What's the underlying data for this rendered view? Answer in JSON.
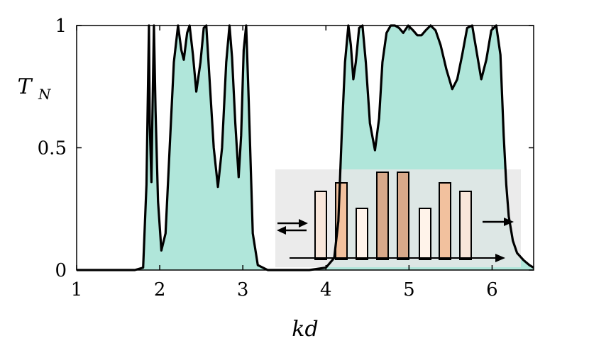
{
  "chart_data": {
    "type": "line",
    "title": "",
    "xlabel": "kd",
    "ylabel_main": "T",
    "ylabel_sub": "N",
    "xlim": [
      1,
      6.5
    ],
    "ylim": [
      0,
      1
    ],
    "x_ticks": [
      1,
      2,
      3,
      4,
      5,
      6
    ],
    "x_tick_labels": [
      "1",
      "2",
      "3",
      "4",
      "5",
      "6"
    ],
    "y_ticks": [
      0,
      0.5,
      1
    ],
    "y_tick_labels": [
      "0",
      "0.5",
      "1"
    ],
    "grid": false,
    "series": [
      {
        "color": "#000000",
        "x": [
          1.0,
          1.7,
          1.8,
          1.84,
          1.87,
          1.88,
          1.9,
          1.91,
          1.93,
          1.95,
          1.98,
          2.02,
          2.07,
          2.12,
          2.17,
          2.22,
          2.26,
          2.29,
          2.33,
          2.36,
          2.4,
          2.44,
          2.49,
          2.53,
          2.56,
          2.6,
          2.65,
          2.7,
          2.75,
          2.8,
          2.84,
          2.87,
          2.91,
          2.95,
          2.98,
          3.01,
          3.04,
          3.07,
          3.12,
          3.18,
          3.3,
          3.5,
          3.8,
          4.0,
          4.1,
          4.15,
          4.19,
          4.23,
          4.27,
          4.3,
          4.33,
          4.36,
          4.4,
          4.44,
          4.48,
          4.53,
          4.59,
          4.64,
          4.68,
          4.73,
          4.78,
          4.83,
          4.88,
          4.93,
          4.99,
          5.05,
          5.1,
          5.15,
          5.2,
          5.26,
          5.32,
          5.38,
          5.45,
          5.52,
          5.58,
          5.64,
          5.7,
          5.76,
          5.82,
          5.87,
          5.93,
          5.99,
          6.05,
          6.1,
          6.14,
          6.17,
          6.2,
          6.25,
          6.3,
          6.38,
          6.45,
          6.5
        ],
        "y": [
          0.0,
          0.0,
          0.01,
          0.35,
          1.0,
          0.6,
          0.36,
          0.6,
          1.0,
          0.65,
          0.28,
          0.08,
          0.15,
          0.5,
          0.85,
          1.0,
          0.9,
          0.86,
          0.97,
          1.0,
          0.88,
          0.73,
          0.85,
          0.99,
          1.0,
          0.78,
          0.5,
          0.34,
          0.5,
          0.85,
          1.0,
          0.87,
          0.6,
          0.38,
          0.55,
          0.9,
          1.0,
          0.7,
          0.15,
          0.02,
          0.0,
          0.0,
          0.0,
          0.01,
          0.05,
          0.2,
          0.55,
          0.85,
          1.0,
          0.92,
          0.78,
          0.85,
          0.99,
          1.0,
          0.85,
          0.6,
          0.49,
          0.62,
          0.85,
          0.97,
          1.0,
          1.0,
          0.99,
          0.97,
          1.0,
          0.98,
          0.96,
          0.96,
          0.98,
          1.0,
          0.98,
          0.92,
          0.82,
          0.74,
          0.78,
          0.88,
          0.99,
          1.0,
          0.88,
          0.78,
          0.86,
          0.98,
          1.0,
          0.88,
          0.55,
          0.35,
          0.22,
          0.12,
          0.07,
          0.04,
          0.02,
          0.01
        ]
      }
    ],
    "inset": {
      "background": "#e6e6e6",
      "bars": [
        {
          "height": 0.32,
          "color": "#f8e6da"
        },
        {
          "height": 0.36,
          "color": "#f2c19e"
        },
        {
          "height": 0.24,
          "color": "#fff3ea"
        },
        {
          "height": 0.41,
          "color": "#d8a98a"
        },
        {
          "height": 0.41,
          "color": "#d8a98a"
        },
        {
          "height": 0.24,
          "color": "#fff3ea"
        },
        {
          "height": 0.36,
          "color": "#f2c19e"
        },
        {
          "height": 0.32,
          "color": "#f8e6da"
        }
      ]
    },
    "colors": {
      "fill": "#b0e6da",
      "line": "#000000"
    }
  }
}
